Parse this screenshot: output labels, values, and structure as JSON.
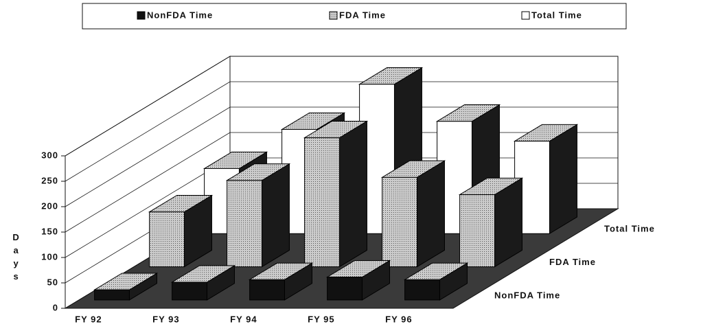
{
  "chart_data": {
    "type": "bar3d",
    "y_label": "Days",
    "categories": [
      "FY 92",
      "FY 93",
      "FY 94",
      "FY 95",
      "FY 96"
    ],
    "series": [
      {
        "name": "NonFDA Time",
        "color": "#111111",
        "values": [
          20,
          35,
          40,
          45,
          40
        ]
      },
      {
        "name": "FDA Time",
        "color": "#b5b5b5",
        "values": [
          108,
          170,
          254,
          176,
          142
        ]
      },
      {
        "name": "Total Time",
        "color": "#ffffff",
        "values": [
          128,
          205,
          294,
          221,
          182
        ]
      }
    ],
    "ylim": [
      0,
      300
    ],
    "yticks": [
      0,
      50,
      100,
      150,
      200,
      250,
      300
    ],
    "grid": true,
    "legend": "top"
  }
}
